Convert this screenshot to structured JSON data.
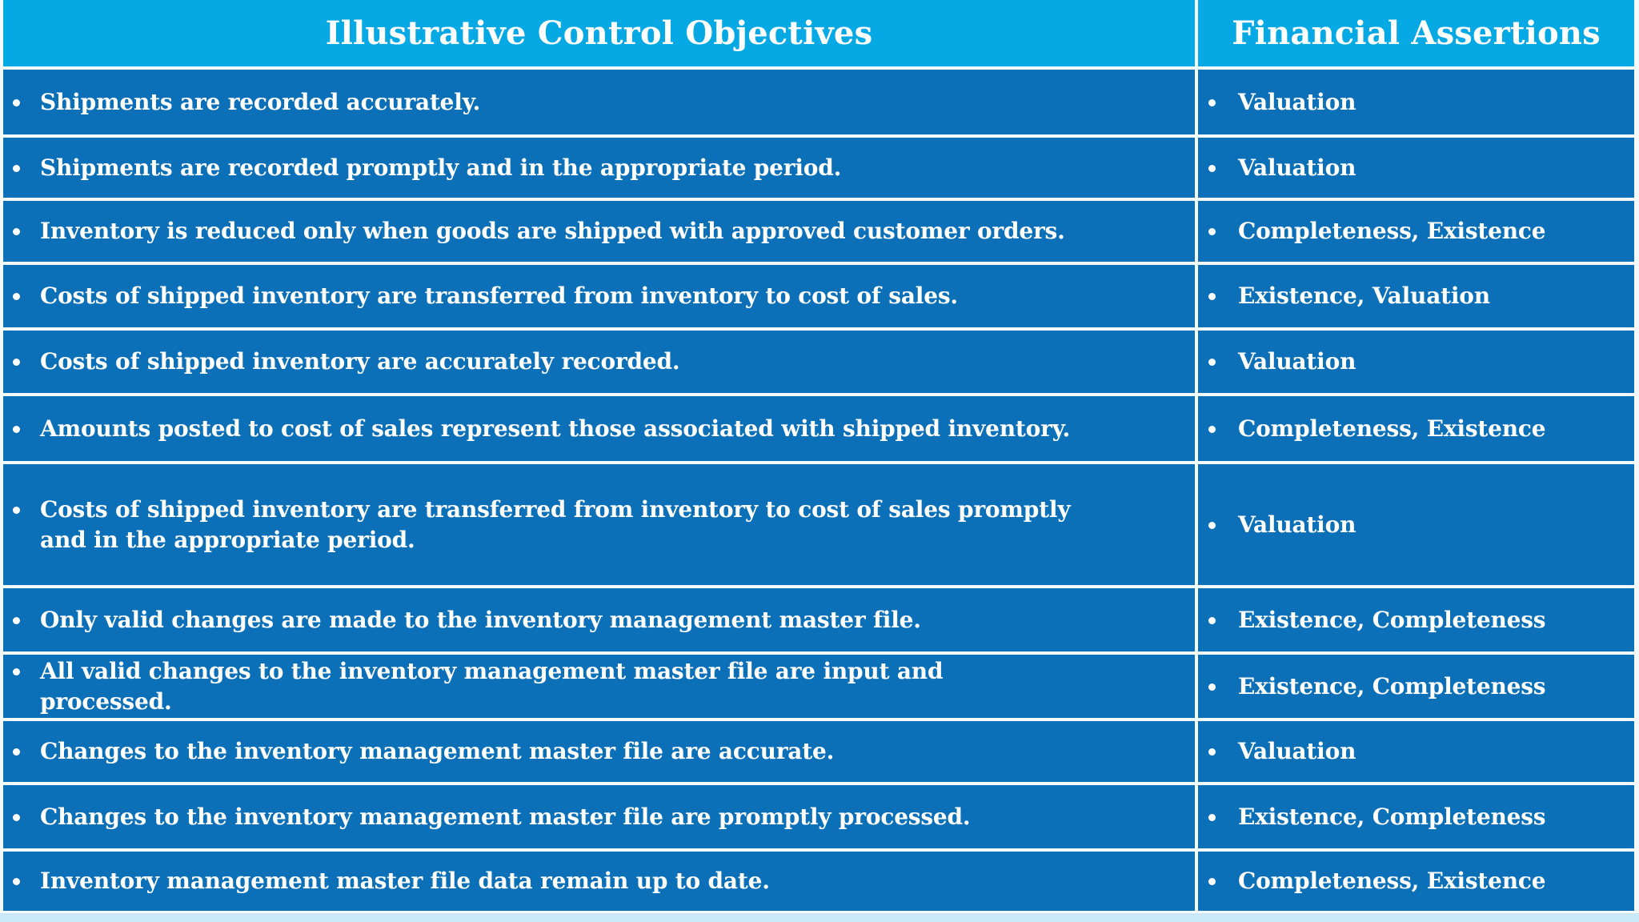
{
  "table": {
    "columns": [
      {
        "header": "Illustrative Control Objectives"
      },
      {
        "header": "Financial Assertions"
      }
    ],
    "rows": [
      {
        "objective": "Shipments are recorded accurately.",
        "assertions": "Valuation"
      },
      {
        "objective": "Shipments are recorded promptly and in the appropriate period.",
        "assertions": "Valuation"
      },
      {
        "objective": "Inventory is reduced only when goods are shipped with approved customer orders.",
        "assertions": "Completeness, Existence"
      },
      {
        "objective": "Costs of shipped inventory are transferred from inventory to cost of sales.",
        "assertions": "Existence, Valuation"
      },
      {
        "objective": "Costs of shipped inventory are accurately recorded.",
        "assertions": "Valuation"
      },
      {
        "objective": "Amounts posted to cost of sales represent those associated with shipped inventory.",
        "assertions": "Completeness, Existence"
      },
      {
        "objective": "Costs of shipped inventory are transferred from inventory to cost of sales promptly\nand in the appropriate period.",
        "assertions": "Valuation"
      },
      {
        "objective": "Only valid changes are made to the inventory management master file.",
        "assertions": "Existence, Completeness"
      },
      {
        "objective": "All valid changes to the inventory management master file are input and\nprocessed.",
        "assertions": "Existence, Completeness"
      },
      {
        "objective": "Changes to the inventory management master file are accurate.",
        "assertions": "Valuation"
      },
      {
        "objective": "Changes to the inventory management master file are promptly processed.",
        "assertions": "Existence, Completeness"
      },
      {
        "objective": "Inventory management master file data remain up to date.",
        "assertions": "Completeness, Existence"
      }
    ]
  },
  "icons": {
    "bullet": "round-dot"
  },
  "colors": {
    "header_bg": "#06a9e4",
    "body_bg": "#0c70b8",
    "grid_line": "#f3fafe",
    "text": "#ffffff",
    "slide_strip": "#cbe8f8"
  }
}
